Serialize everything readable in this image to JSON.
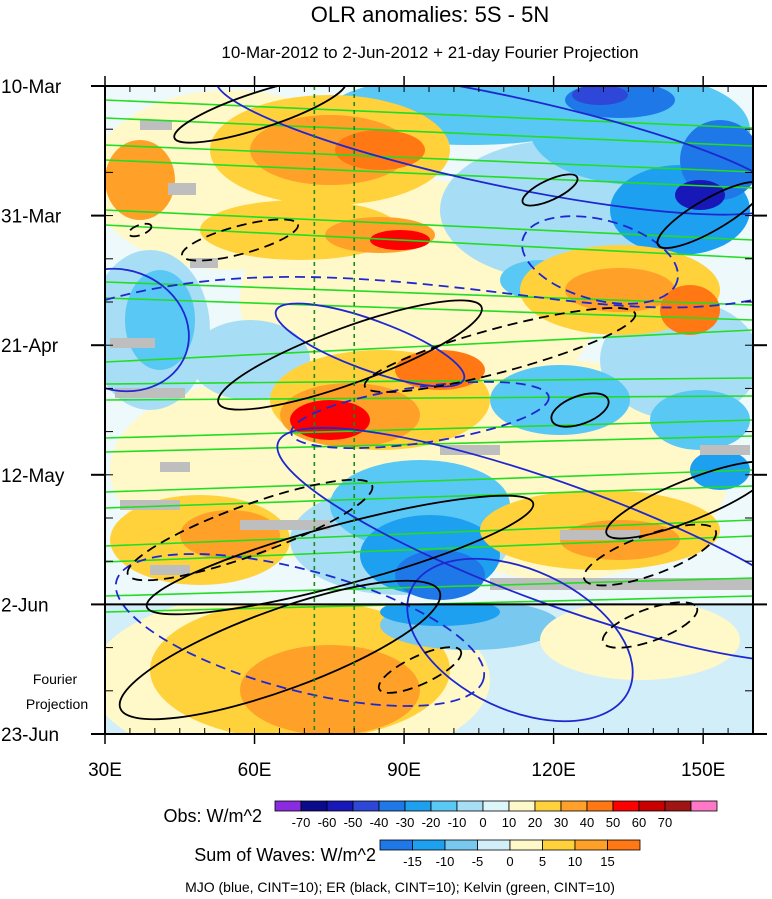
{
  "chart_data": {
    "type": "heatmap",
    "title": "OLR anomalies: 5S - 5N",
    "subtitle": "10-Mar-2012 to 2-Jun-2012 + 21-day Fourier Projection",
    "x_ticks": [
      "30E",
      "60E",
      "90E",
      "120E",
      "150E"
    ],
    "x_tick_values": [
      30,
      60,
      90,
      120,
      150
    ],
    "xlim": [
      30,
      160
    ],
    "y_ticks": [
      "10-Mar",
      "31-Mar",
      "21-Apr",
      "12-May",
      "2-Jun",
      "23-Jun"
    ],
    "ylim": [
      "2012-03-10",
      "2012-06-23"
    ],
    "projection_start": "2012-06-02",
    "projection_label": [
      "Fourier",
      "Projection"
    ],
    "reference_lines_lon": [
      72,
      80
    ],
    "obs_legend": {
      "label": "Obs: W/m^2",
      "levels": [
        "-70",
        "-60",
        "-50",
        "-40",
        "-30",
        "-20",
        "-10",
        "0",
        "10",
        "20",
        "30",
        "40",
        "50",
        "60",
        "70"
      ],
      "colors": [
        "#8a2be2",
        "#0a0a8a",
        "#1818b8",
        "#2f47d8",
        "#1e78e8",
        "#1ea0f0",
        "#5ac8f5",
        "#a8def5",
        "#ddf6fa",
        "#fff8c8",
        "#ffd23c",
        "#ffa028",
        "#ff7814",
        "#ff0000",
        "#c80000",
        "#a01414",
        "#ff78c8"
      ]
    },
    "waves_legend": {
      "label": "Sum of Waves: W/m^2",
      "levels": [
        "-15",
        "-10",
        "-5",
        "0",
        "5",
        "10",
        "15"
      ],
      "colors": [
        "#1e78e8",
        "#1ea0f0",
        "#78c8f0",
        "#d2eef8",
        "#fff8c8",
        "#ffd23c",
        "#ffa028",
        "#ff7814"
      ]
    },
    "footnote": "MJO (blue, CINT=10); ER (black, CINT=10); Kelvin (green, CINT=10)"
  }
}
